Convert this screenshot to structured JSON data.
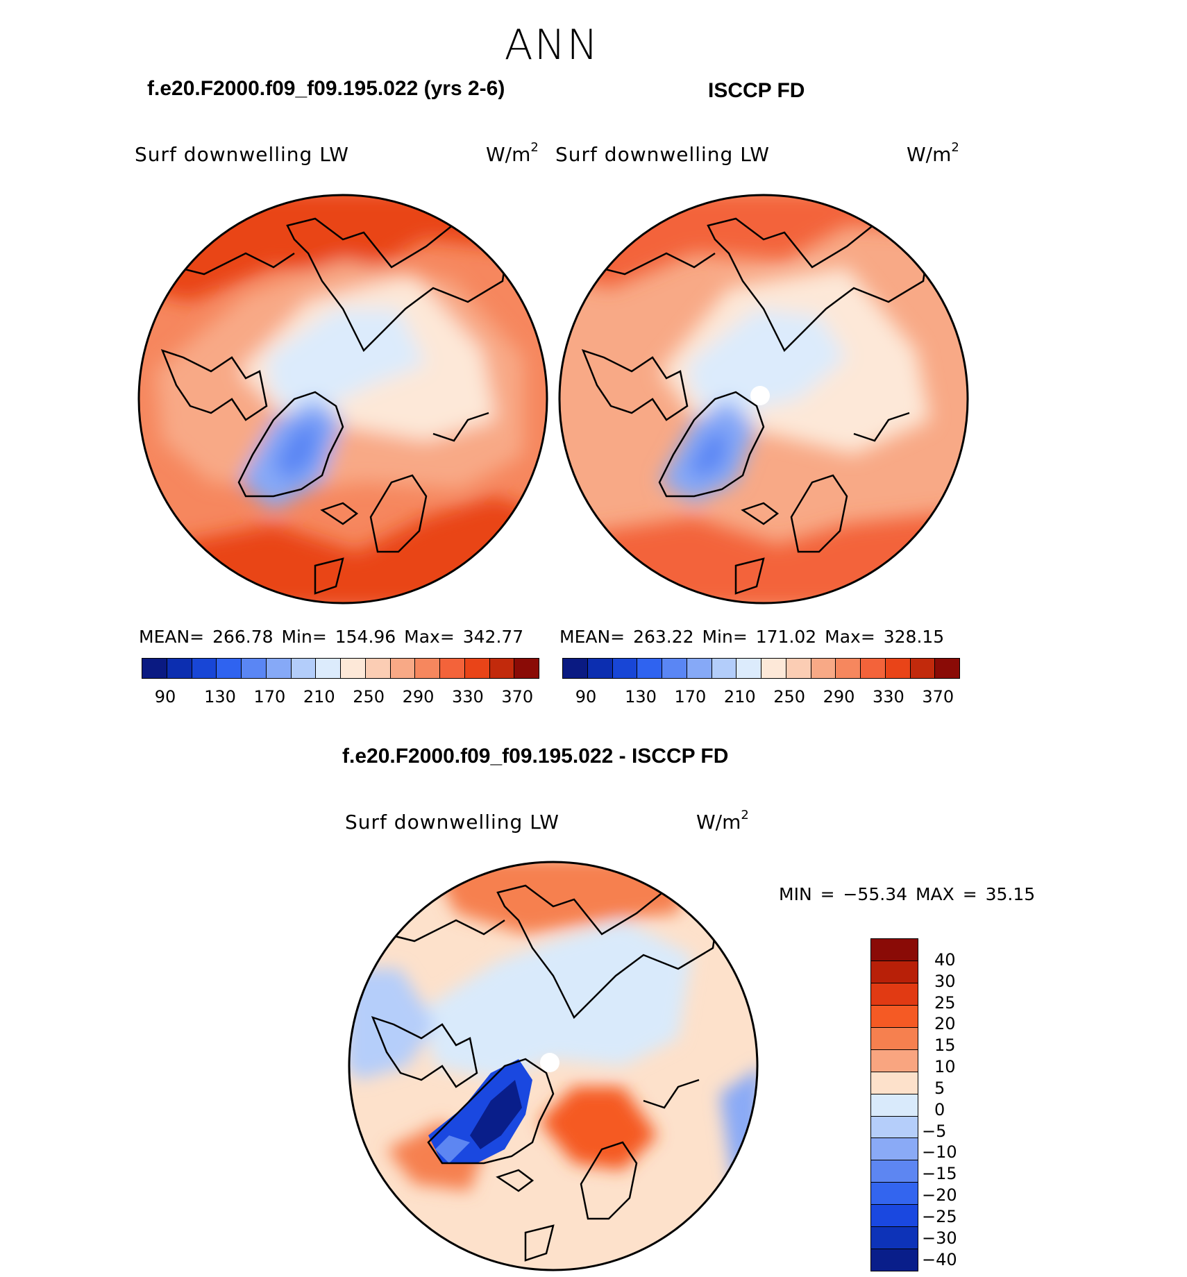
{
  "page": {
    "title": "ANN"
  },
  "panels": [
    {
      "id": "model",
      "title": "f.e20.F2000.f09_f09.195.022 (yrs 2-6)",
      "variable": "Surf downwelling LW",
      "units": "W/m",
      "units_sup": "2",
      "stats": "MEAN= 266.78   Min= 154.96   Max= 342.77"
    },
    {
      "id": "obs",
      "title": "ISCCP FD",
      "variable": "Surf downwelling LW",
      "units": "W/m",
      "units_sup": "2",
      "stats": "MEAN= 263.22   Min= 171.02   Max= 328.15"
    },
    {
      "id": "diff",
      "title": "f.e20.F2000.f09_f09.195.022 - ISCCP FD",
      "variable": "Surf downwelling LW",
      "units": "W/m",
      "units_sup": "2",
      "stats": "MIN =  −55.34  MAX =   35.15"
    }
  ],
  "colorbar_abs": {
    "colors": [
      "#0a1a82",
      "#0c2eb0",
      "#1846d6",
      "#2f63f0",
      "#5a86f4",
      "#86a9f7",
      "#b3cdfa",
      "#dcebfc",
      "#fde8d8",
      "#fbcdb4",
      "#f8a986",
      "#f6875e",
      "#f3633a",
      "#e94418",
      "#c22a0c",
      "#8a0b06"
    ],
    "ticks": [
      "90",
      "130",
      "170",
      "210",
      "250",
      "290",
      "330",
      "370"
    ]
  },
  "colorbar_diff": {
    "colors": [
      "#8a0b06",
      "#b82008",
      "#e13a13",
      "#f55a24",
      "#f6804f",
      "#f9a580",
      "#fde1cb",
      "#d9eafb",
      "#b5cefa",
      "#8aaaf6",
      "#5d86f2",
      "#3365ef",
      "#1a48e0",
      "#0d33b8",
      "#091e8a"
    ],
    "ticks": [
      "40",
      "30",
      "25",
      "20",
      "15",
      "10",
      "5",
      "0",
      "−5",
      "−10",
      "−15",
      "−20",
      "−25",
      "−30",
      "−40"
    ]
  },
  "colors": {
    "land_outline": "#000000",
    "background": "#ffffff"
  }
}
